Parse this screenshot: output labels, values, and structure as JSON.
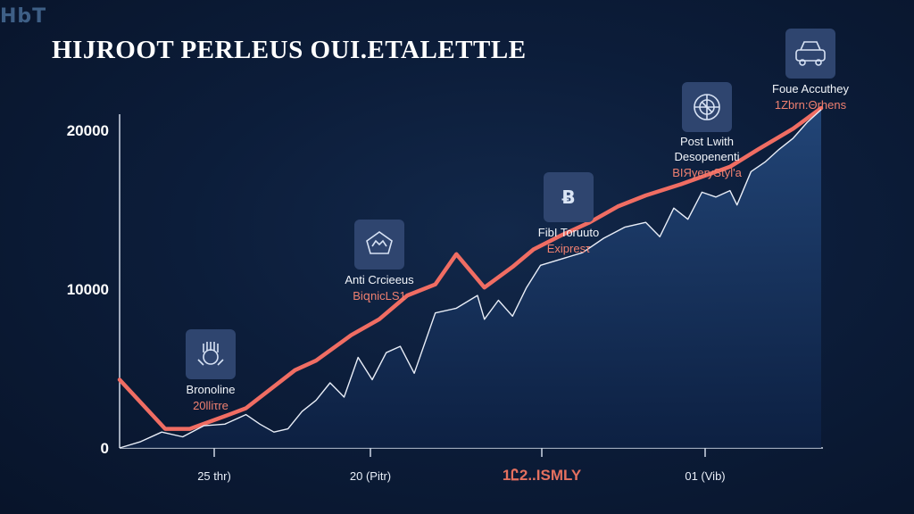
{
  "header": {
    "brand": "HbT",
    "title": "HIJROOT PERLEUS OUI.ETALETTLE"
  },
  "colors": {
    "background": "#0c1d3a",
    "primary_line": "#f06d63",
    "secondary_line": "#e9eef8",
    "area_fill": "#1c3a66",
    "axis": "#cfd8e6"
  },
  "chart_data": {
    "type": "line",
    "title": "HIJROOT PERLEUS OUI.ETALETTLE",
    "ylim": [
      0,
      20000
    ],
    "y_ticks": [
      0,
      10000,
      20000
    ],
    "y_tick_labels": [
      "0",
      "10000",
      "20000"
    ],
    "x_tick_labels": [
      "25 thr)",
      "20 (Pitr)",
      "1Ꮭ2..ISMLY",
      "01 (Vib)"
    ],
    "grid": false,
    "series": [
      {
        "style": "thick-line",
        "x": [
          0,
          6.5,
          10,
          15,
          18,
          25,
          28,
          33,
          37,
          41,
          45,
          48,
          52,
          56,
          59,
          63,
          67,
          71,
          75,
          80,
          87,
          91,
          96,
          100
        ],
        "values": [
          4300,
          1200,
          1200,
          2000,
          2500,
          4900,
          5500,
          7100,
          8100,
          9600,
          10300,
          12200,
          10100,
          11400,
          12500,
          13400,
          14200,
          15200,
          15900,
          16600,
          17700,
          18800,
          20100,
          21400
        ]
      },
      {
        "style": "area-line",
        "x": [
          0,
          3,
          6,
          9,
          12,
          15,
          18,
          20,
          22,
          24,
          26,
          28,
          30,
          32,
          34,
          36,
          38,
          40,
          42,
          45,
          48,
          51,
          52,
          54,
          56,
          58,
          60,
          63,
          66,
          69,
          72,
          75,
          77,
          79,
          81,
          83,
          85,
          87,
          88,
          90,
          92,
          94,
          96,
          98,
          100
        ],
        "values": [
          0,
          400,
          1000,
          700,
          1400,
          1500,
          2100,
          1500,
          1000,
          1200,
          2300,
          3000,
          4100,
          3200,
          5700,
          4300,
          6000,
          6400,
          4700,
          8500,
          8800,
          9600,
          8100,
          9300,
          8300,
          10100,
          11500,
          11900,
          12300,
          13200,
          13900,
          14200,
          13300,
          15100,
          14400,
          16100,
          15800,
          16200,
          15300,
          17400,
          18000,
          18800,
          19500,
          20500,
          21300
        ]
      }
    ],
    "annotations": [
      {
        "x": 10.5,
        "label": "Bronoline",
        "sublabel": "20lliτre",
        "icon": "hands-gear-icon"
      },
      {
        "x": 37,
        "label": "Anti Crcieeus",
        "sublabel": "BiզnicLS1",
        "icon": "shield-crown-icon"
      },
      {
        "x": 58,
        "label": "FibI Toruuto",
        "sublabel": "Exipresτ",
        "icon": "bitcoin-icon"
      },
      {
        "x": 81,
        "label": "Post Lwith\nDesopenenti",
        "sublabel": "BΙЯyeryStyl'a",
        "icon": "globe-circuit-icon"
      },
      {
        "x": 91,
        "label": "Foue Accuthey",
        "sublabel": "1Zbrn:Θrhens",
        "icon": "car-icon"
      }
    ]
  }
}
